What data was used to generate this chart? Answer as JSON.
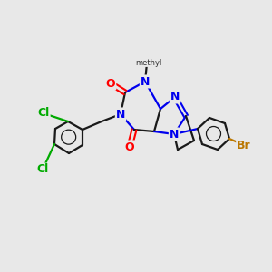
{
  "background_color": "#e8e8e8",
  "bond_color": "#1a1a1a",
  "atom_colors": {
    "N": "#0000ee",
    "O": "#ff0000",
    "Cl": "#00aa00",
    "Br": "#bb7700",
    "C": "#1a1a1a"
  },
  "figsize": [
    3.0,
    3.0
  ],
  "dpi": 100
}
